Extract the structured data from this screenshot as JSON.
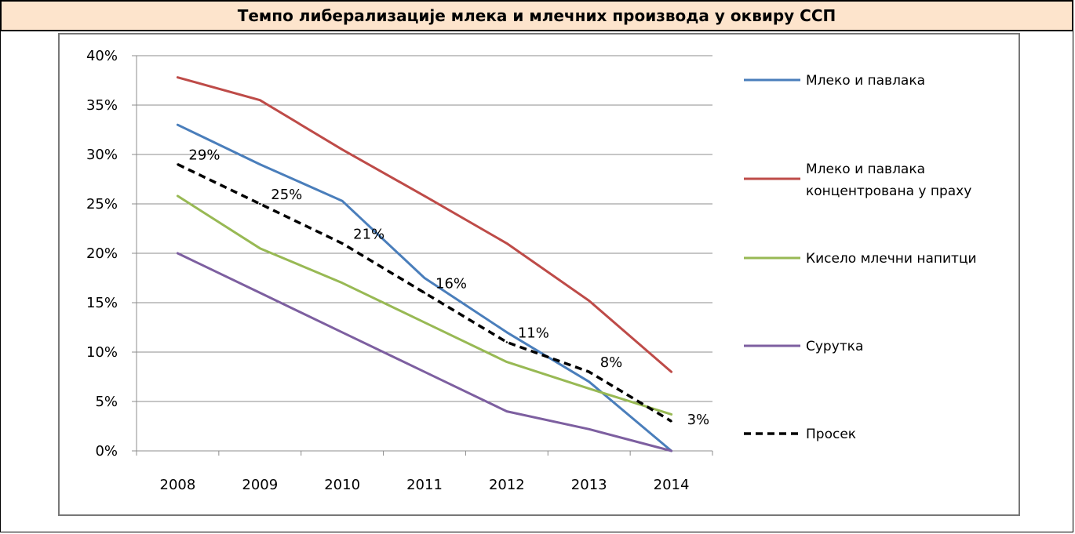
{
  "title": "Темпо либерализације млека и млечних производа у оквиру ССП",
  "chart_data": {
    "type": "line",
    "title": "Темпо либерализације млека и млечних производа у оквиру ССП",
    "xlabel": "",
    "ylabel": "",
    "x": [
      "2008",
      "2009",
      "2010",
      "2011",
      "2012",
      "2013",
      "2014"
    ],
    "ylim": [
      0,
      40
    ],
    "yticks": [
      "0%",
      "5%",
      "10%",
      "15%",
      "20%",
      "25%",
      "30%",
      "35%",
      "40%"
    ],
    "grid": true,
    "legend_position": "right",
    "series": [
      {
        "name": "Млеко и павлака",
        "color": "#4a7ebb",
        "dashed": false,
        "values": [
          33,
          29,
          25.3,
          17.5,
          12,
          7,
          0
        ]
      },
      {
        "name": "Млеко и павлака концентрована у праху",
        "color": "#be4b48",
        "dashed": false,
        "values": [
          37.8,
          35.5,
          30.5,
          25.8,
          21,
          15.2,
          8
        ]
      },
      {
        "name": "Кисело млечни напитци",
        "color": "#98b954",
        "dashed": false,
        "values": [
          25.8,
          20.5,
          17,
          13,
          9,
          6.3,
          3.7
        ]
      },
      {
        "name": "Сурутка",
        "color": "#7d5fa0",
        "dashed": false,
        "values": [
          20,
          16,
          12,
          8,
          4,
          2.2,
          0
        ]
      },
      {
        "name": "Просек",
        "color": "#000000",
        "dashed": true,
        "values": [
          29,
          25,
          21,
          16,
          11,
          8,
          3
        ],
        "labels": [
          "29%",
          "25%",
          "21%",
          "16%",
          "11%",
          "8%",
          "3%"
        ]
      }
    ]
  }
}
